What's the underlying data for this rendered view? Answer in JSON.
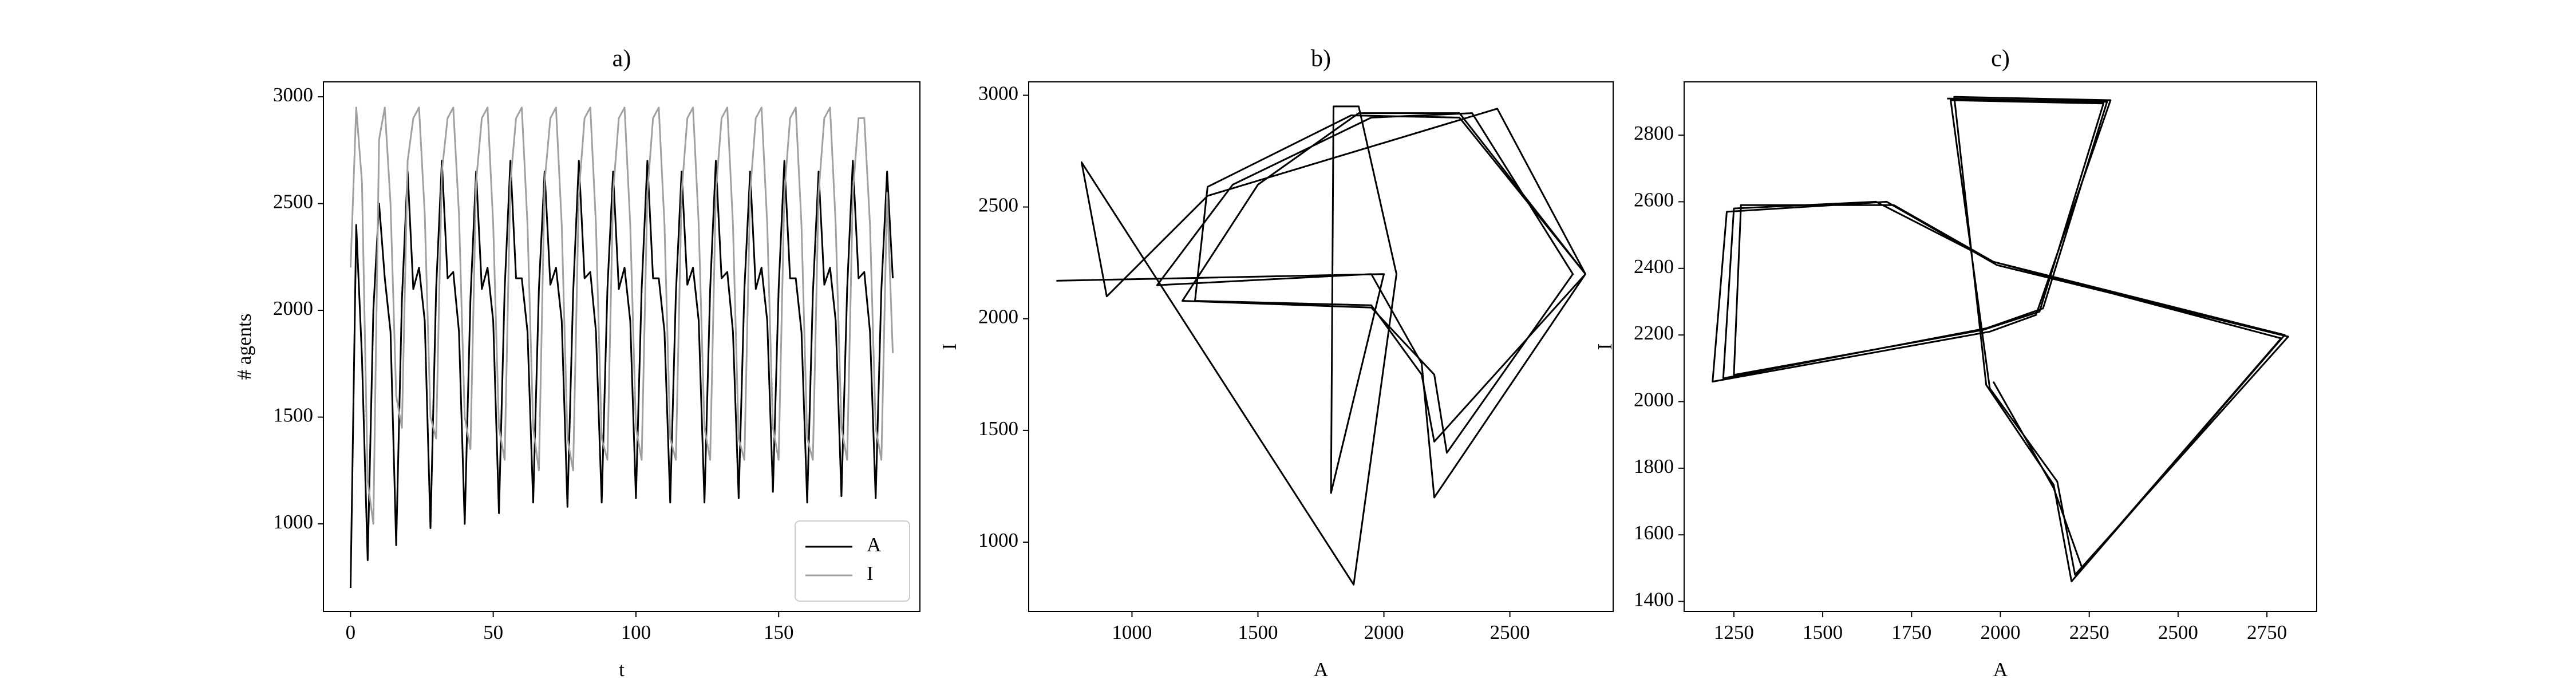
{
  "chart_data": [
    {
      "type": "line",
      "title": "a)",
      "x_label": "t",
      "y_label": "# agents",
      "x": [
        0,
        2,
        4,
        6,
        8,
        10,
        12,
        14,
        16,
        18,
        20,
        22,
        24,
        26,
        28,
        30,
        32,
        34,
        36,
        38,
        40,
        42,
        44,
        46,
        48,
        50,
        52,
        54,
        56,
        58,
        60,
        62,
        64,
        66,
        68,
        70,
        72,
        74,
        76,
        78,
        80,
        82,
        84,
        86,
        88,
        90,
        92,
        94,
        96,
        98,
        100,
        102,
        104,
        106,
        108,
        110,
        112,
        114,
        116,
        118,
        120,
        122,
        124,
        126,
        128,
        130,
        132,
        134,
        136,
        138,
        140,
        142,
        144,
        146,
        148,
        150,
        152,
        154,
        156,
        158,
        160,
        162,
        164,
        166,
        168,
        170,
        172,
        174,
        176,
        178,
        180,
        182,
        184,
        186,
        188,
        190
      ],
      "series": [
        {
          "name": "A",
          "color": "#000000",
          "values": [
            700,
            2400,
            1780,
            830,
            2000,
            2500,
            2150,
            1900,
            900,
            2050,
            2650,
            2100,
            2200,
            1950,
            980,
            2100,
            2700,
            2150,
            2180,
            1900,
            1000,
            2050,
            2650,
            2100,
            2200,
            1950,
            1050,
            2100,
            2700,
            2150,
            2150,
            1900,
            1100,
            2100,
            2650,
            2120,
            2200,
            1950,
            1080,
            2080,
            2700,
            2150,
            2180,
            1900,
            1100,
            2100,
            2650,
            2100,
            2200,
            1950,
            1120,
            2100,
            2700,
            2150,
            2150,
            1900,
            1100,
            2080,
            2650,
            2120,
            2200,
            1950,
            1100,
            2100,
            2700,
            2150,
            2180,
            1900,
            1120,
            2100,
            2650,
            2100,
            2200,
            1950,
            1150,
            2100,
            2700,
            2150,
            2150,
            1900,
            1100,
            2080,
            2650,
            2120,
            2200,
            1950,
            1130,
            2100,
            2700,
            2150,
            2180,
            1900,
            1120,
            2100,
            2650,
            2150
          ]
        },
        {
          "name": "I",
          "color": "#a0a0a0",
          "values": [
            2200,
            2950,
            2600,
            1200,
            1000,
            2800,
            2950,
            2500,
            1600,
            1450,
            2700,
            2900,
            2950,
            2450,
            1500,
            1400,
            2650,
            2900,
            2950,
            2450,
            1500,
            1350,
            2600,
            2900,
            2950,
            2400,
            1450,
            1300,
            2600,
            2900,
            2950,
            2400,
            1450,
            1250,
            2600,
            2900,
            2950,
            2400,
            1400,
            1250,
            2550,
            2900,
            2950,
            2400,
            1400,
            1300,
            2550,
            2900,
            2950,
            2400,
            1450,
            1300,
            2550,
            2900,
            2950,
            2400,
            1400,
            1300,
            2550,
            2900,
            2950,
            2400,
            1450,
            1300,
            2550,
            2900,
            2950,
            2400,
            1400,
            1300,
            2550,
            2900,
            2950,
            2400,
            1450,
            1300,
            2550,
            2900,
            2950,
            2400,
            1400,
            1300,
            2550,
            2900,
            2950,
            2400,
            1450,
            1300,
            2550,
            2900,
            2900,
            2400,
            1450,
            1300,
            2550,
            1800
          ]
        }
      ],
      "xlim": [
        -9.5,
        199.5
      ],
      "xticks": [
        0,
        50,
        100,
        150
      ],
      "ylim": [
        590,
        3070
      ],
      "yticks": [
        1000,
        1500,
        2000,
        2500,
        3000
      ],
      "legend": "lower right"
    },
    {
      "type": "line",
      "title": "b)",
      "x_label": "A",
      "y_label": "I",
      "color": "#000000",
      "x": [
        700,
        2000,
        1790,
        1800,
        1900,
        2050,
        1880,
        800,
        900,
        1300,
        2450,
        2800,
        2200,
        2150,
        1950,
        1100,
        1400,
        1950,
        2350,
        2750,
        2250,
        2200,
        1950,
        1200,
        1500,
        1900,
        2300,
        2800,
        2200,
        2150,
        1950,
        1250,
        1300,
        1870,
        2300,
        2800
      ],
      "values": [
        2170,
        2200,
        1220,
        2950,
        2950,
        2200,
        810,
        2700,
        2100,
        2550,
        2940,
        2200,
        1200,
        1800,
        2200,
        2150,
        2600,
        2900,
        2920,
        2200,
        1400,
        1750,
        2050,
        2080,
        2600,
        2920,
        2920,
        2200,
        1450,
        1750,
        2060,
        2080,
        2590,
        2910,
        2900,
        2200
      ],
      "xlim": [
        590,
        2910
      ],
      "xticks": [
        1000,
        1500,
        2000,
        2500
      ],
      "ylim": [
        690,
        3060
      ],
      "yticks": [
        1000,
        1500,
        2000,
        2500,
        3000
      ]
    },
    {
      "type": "line",
      "title": "c)",
      "x_label": "A",
      "y_label": "I",
      "color": "#000000",
      "x": [
        1850,
        2300,
        2120,
        1960,
        1220,
        1250,
        1650,
        1980,
        2800,
        2200,
        2150,
        1960,
        1870,
        2310,
        2100,
        1970,
        1190,
        1230,
        1680,
        1990,
        2810,
        2210,
        2160,
        1970,
        1860,
        2290,
        2110,
        1950,
        1250,
        1270,
        1700,
        1980,
        2790,
        2230,
        2150,
        1980
      ],
      "values": [
        2910,
        2900,
        2280,
        2220,
        2070,
        2580,
        2600,
        2420,
        2200,
        1460,
        1750,
        2050,
        2915,
        2905,
        2260,
        2210,
        2060,
        2570,
        2600,
        2410,
        2195,
        1480,
        1760,
        2040,
        2905,
        2895,
        2270,
        2215,
        2080,
        2590,
        2590,
        2420,
        2190,
        1500,
        1740,
        2060
      ],
      "xlim": [
        1110,
        2890
      ],
      "xticks": [
        1250,
        1500,
        1750,
        2000,
        2250,
        2500,
        2750
      ],
      "ylim": [
        1370,
        2960
      ],
      "yticks": [
        1400,
        1600,
        1800,
        2000,
        2200,
        2400,
        2600,
        2800
      ]
    }
  ]
}
